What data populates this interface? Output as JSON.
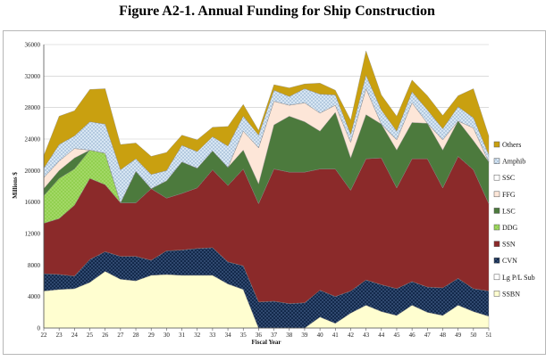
{
  "title": "Figure  A2-1.  Annual Funding  for Ship Construction",
  "chart_data": {
    "type": "area",
    "stacked": true,
    "xlabel": "Fiscal Year",
    "ylabel": "Millions $",
    "ylim": [
      0,
      36000
    ],
    "yticks": [
      0,
      4000,
      8000,
      12000,
      16000,
      20000,
      24000,
      28000,
      32000,
      36000
    ],
    "ytick_labels": [
      "0",
      "4000",
      "8000",
      "12000",
      "16000",
      "20000",
      "24000",
      "28000",
      "32000",
      "36000"
    ],
    "x": [
      22,
      23,
      24,
      25,
      26,
      27,
      28,
      29,
      30,
      31,
      32,
      33,
      34,
      35,
      36,
      37,
      38,
      39,
      40,
      41,
      42,
      43,
      44,
      45,
      46,
      47,
      48,
      49,
      50,
      51
    ],
    "grid": true,
    "legend_position": "right",
    "series": [
      {
        "name": "SSBN",
        "color": "#fffed0",
        "values": [
          4700,
          4900,
          5000,
          5800,
          7200,
          6200,
          6000,
          6700,
          6800,
          6700,
          6700,
          6700,
          5600,
          4900,
          0,
          0,
          0,
          0,
          1400,
          600,
          1900,
          2900,
          2100,
          1600,
          2900,
          2000,
          1600,
          2900,
          2100,
          1500
        ]
      },
      {
        "name": "Lg P/L Sub",
        "color": "#ffffff",
        "values": [
          0,
          0,
          0,
          0,
          0,
          0,
          0,
          0,
          0,
          0,
          0,
          0,
          0,
          0,
          0,
          0,
          0,
          0,
          0,
          0,
          0,
          0,
          0,
          0,
          0,
          0,
          0,
          0,
          0,
          0
        ]
      },
      {
        "name": "CVN",
        "color": "#13294b",
        "values": [
          2200,
          1900,
          1600,
          2900,
          2500,
          2900,
          3100,
          1900,
          3000,
          3200,
          3400,
          3500,
          2800,
          3000,
          3300,
          3400,
          3100,
          3200,
          3400,
          3400,
          2800,
          3200,
          3400,
          3400,
          3000,
          3200,
          3500,
          3400,
          2900,
          3200
        ]
      },
      {
        "name": "SSN",
        "color": "#8b2a2a",
        "values": [
          6400,
          7100,
          9000,
          10300,
          8500,
          6800,
          6800,
          9100,
          6700,
          7200,
          7700,
          9900,
          9700,
          12300,
          12500,
          16800,
          16700,
          16600,
          15400,
          16200,
          12800,
          15400,
          16100,
          12800,
          15600,
          16300,
          12700,
          15500,
          15100,
          11100
        ]
      },
      {
        "name": "DDG",
        "color": "#92d050",
        "values": [
          3500,
          5100,
          4600,
          3600,
          4000,
          0,
          0,
          0,
          0,
          0,
          0,
          0,
          0,
          0,
          0,
          0,
          0,
          0,
          0,
          0,
          0,
          0,
          0,
          0,
          0,
          0,
          0,
          0,
          0,
          0
        ]
      },
      {
        "name": "LSC",
        "color": "#4c7a3d",
        "values": [
          900,
          1000,
          1400,
          0,
          0,
          0,
          4000,
          0,
          2200,
          4000,
          2500,
          2400,
          2300,
          2400,
          2500,
          5600,
          7100,
          6400,
          4800,
          7200,
          4100,
          5600,
          4300,
          4800,
          4600,
          4500,
          4800,
          4500,
          3700,
          5300
        ]
      },
      {
        "name": "FFG",
        "color": "#fde6d8",
        "values": [
          1400,
          1200,
          1200,
          0,
          0,
          0,
          0,
          0,
          0,
          0,
          0,
          0,
          0,
          2400,
          4600,
          3000,
          1400,
          2400,
          2300,
          900,
          2000,
          3300,
          0,
          1300,
          2500,
          0,
          1300,
          0,
          1600,
          0
        ]
      },
      {
        "name": "SSC",
        "color": "#ffffff",
        "values": [
          0,
          0,
          0,
          0,
          0,
          0,
          0,
          0,
          0,
          0,
          0,
          0,
          0,
          0,
          0,
          0,
          0,
          0,
          0,
          0,
          0,
          0,
          0,
          0,
          0,
          0,
          0,
          0,
          0,
          0
        ]
      },
      {
        "name": "Amphib",
        "color": "#d7e6f3",
        "values": [
          1200,
          2100,
          1600,
          3600,
          3700,
          4200,
          1600,
          1800,
          1300,
          2100,
          2100,
          1800,
          2700,
          1900,
          1600,
          1400,
          1100,
          1800,
          2400,
          1300,
          1000,
          1700,
          1800,
          1100,
          1400,
          1700,
          1400,
          1800,
          1300,
          900
        ]
      },
      {
        "name": "Others",
        "color": "#c9a010",
        "values": [
          1600,
          3600,
          3200,
          4100,
          4500,
          3200,
          2000,
          2300,
          2300,
          1300,
          1500,
          1200,
          2500,
          1500,
          600,
          700,
          1100,
          600,
          1400,
          600,
          1800,
          3100,
          1900,
          1900,
          1500,
          1800,
          1700,
          1400,
          3700,
          2400
        ]
      }
    ],
    "legend_order": [
      "Others",
      "Amphib",
      "SSC",
      "FFG",
      "LSC",
      "DDG",
      "SSN",
      "CVN",
      "Lg P/L Sub",
      "SSBN"
    ]
  }
}
